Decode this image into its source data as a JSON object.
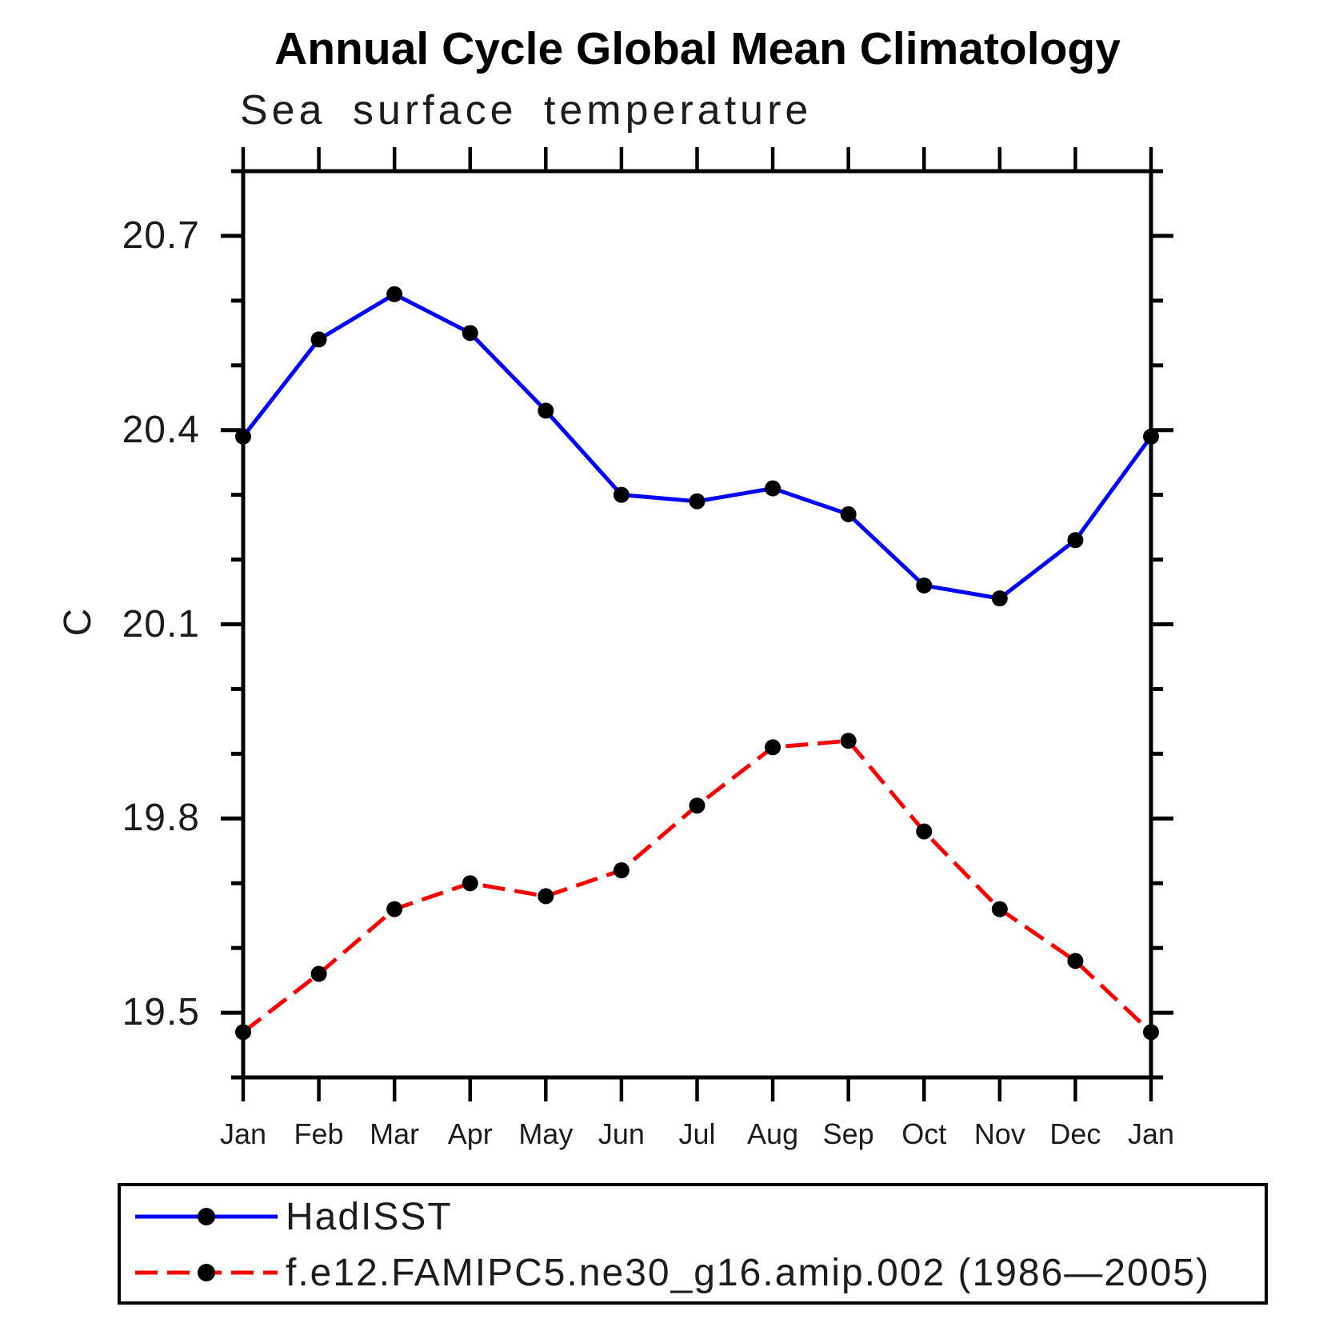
{
  "chart_data": {
    "type": "line",
    "title": "Annual Cycle Global Mean Climatology",
    "subtitle": "Sea surface temperature",
    "ylabel": "C",
    "categories": [
      "Jan",
      "Feb",
      "Mar",
      "Apr",
      "May",
      "Jun",
      "Jul",
      "Aug",
      "Sep",
      "Oct",
      "Nov",
      "Dec",
      "Jan"
    ],
    "series": [
      {
        "name": "HadISST",
        "color": "#0000ff",
        "line_style": "solid",
        "marker": "circle",
        "marker_color": "#000000",
        "values": [
          20.39,
          20.54,
          20.61,
          20.55,
          20.43,
          20.3,
          20.29,
          20.31,
          20.27,
          20.16,
          20.14,
          20.23,
          20.39
        ]
      },
      {
        "name": "f.e12.FAMIPC5.ne30_g16.amip.002 (1986—2005)",
        "color": "#ff0000",
        "line_style": "dashed",
        "marker": "circle",
        "marker_color": "#000000",
        "values": [
          19.47,
          19.56,
          19.66,
          19.7,
          19.68,
          19.72,
          19.82,
          19.91,
          19.92,
          19.78,
          19.66,
          19.58,
          19.47
        ]
      }
    ],
    "ylim": [
      19.4,
      20.8
    ],
    "yticks_major": [
      20.7,
      20.4,
      20.1,
      19.8,
      19.5
    ],
    "ytick_labels": [
      "20.7",
      "20.4",
      "20.1",
      "19.8",
      "19.5"
    ],
    "ytick_minor_step": 0.1,
    "grid": false,
    "legend_position": "bottom",
    "axis_color": "#000000",
    "background_color": "#ffffff"
  }
}
